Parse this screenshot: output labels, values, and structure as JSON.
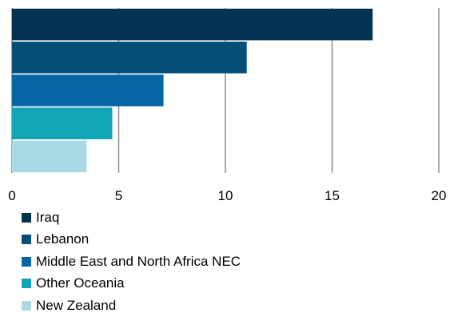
{
  "chart_data": {
    "type": "bar",
    "orientation": "horizontal",
    "title": "",
    "xlabel": "",
    "ylabel": "",
    "categories": [
      "Iraq",
      "Lebanon",
      "Middle East and North Africa NEC",
      "Other Oceania",
      "New Zealand"
    ],
    "values": [
      16.9,
      11.0,
      7.1,
      4.7,
      3.5
    ],
    "colors": [
      "#023452",
      "#044e78",
      "#0565a5",
      "#12a5b8",
      "#a8d9e5"
    ],
    "xlim": [
      0,
      20
    ],
    "xticks": [
      "0",
      "5",
      "10",
      "15",
      "20"
    ],
    "grid": true,
    "legend_position": "bottom"
  }
}
